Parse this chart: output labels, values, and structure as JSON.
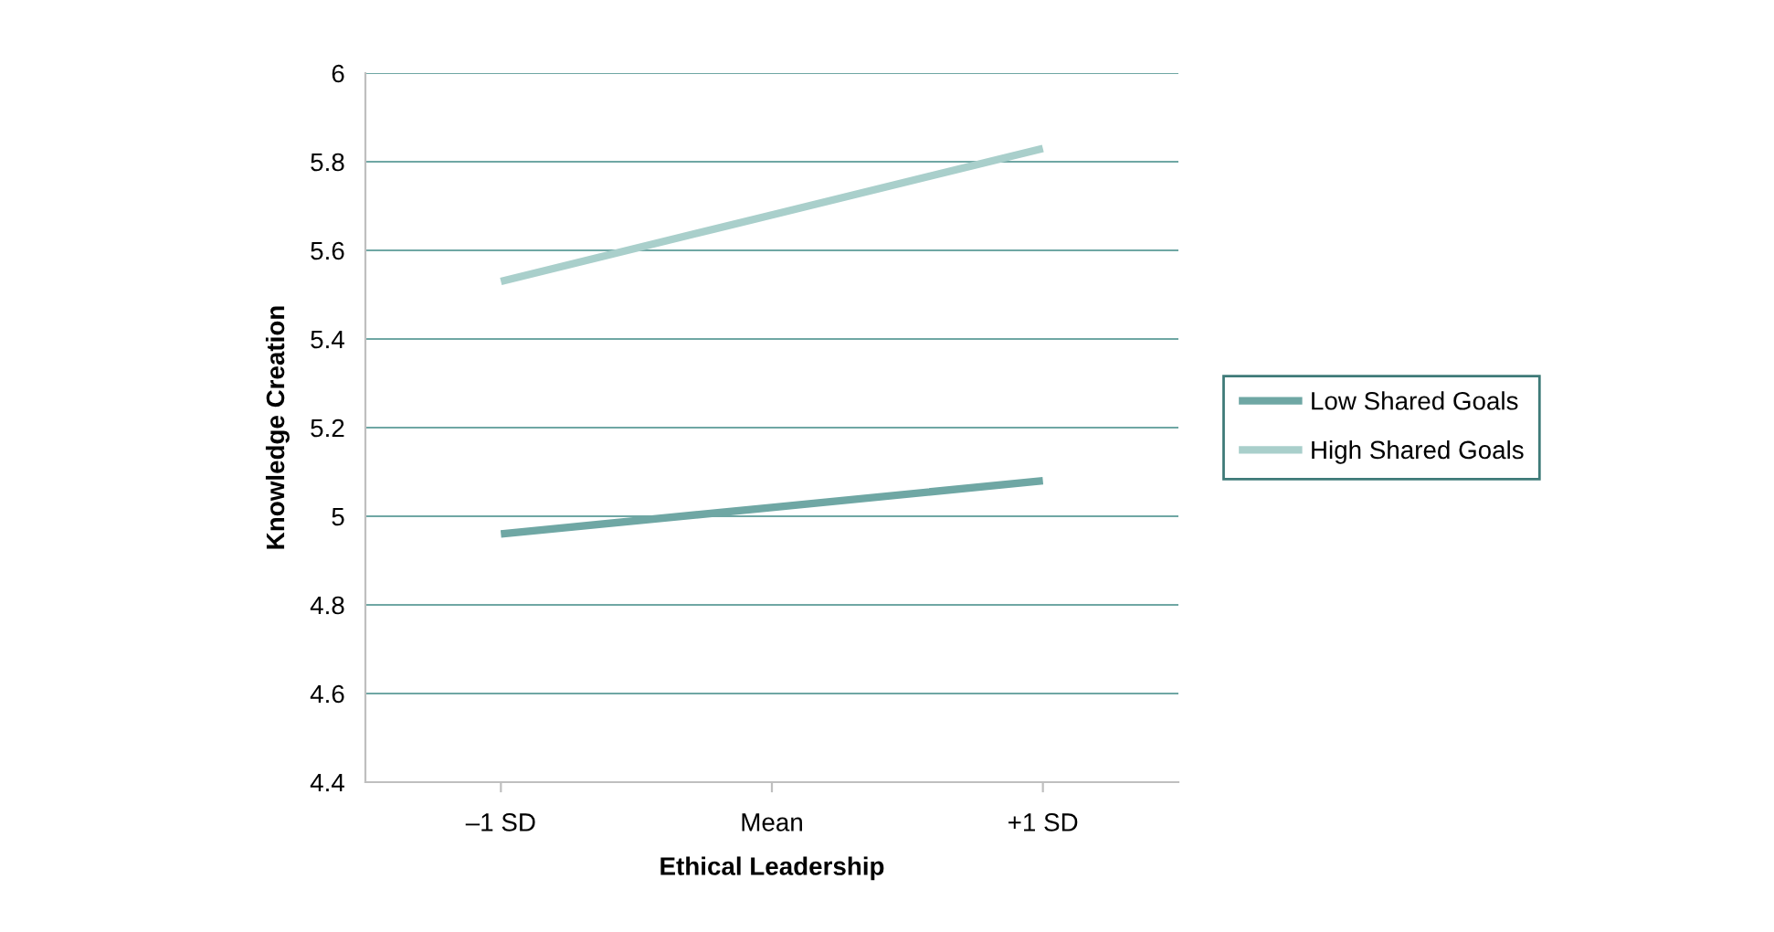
{
  "chart_data": {
    "type": "line",
    "xlabel": "Ethical Leadership",
    "ylabel": "Knowledge Creation",
    "categories": [
      "–1 SD",
      "Mean",
      "+1 SD"
    ],
    "series": [
      {
        "name": "Low Shared Goals",
        "color": "#6fa7a4",
        "values": [
          4.96,
          5.02,
          5.08
        ]
      },
      {
        "name": "High Shared Goals",
        "color": "#a9cfcb",
        "values": [
          5.53,
          5.68,
          5.83
        ]
      }
    ],
    "ylim": [
      4.4,
      6
    ],
    "yticks": [
      4.4,
      4.6,
      4.8,
      5,
      5.2,
      5.4,
      5.6,
      5.8,
      6
    ],
    "grid": "y",
    "legend": "right",
    "marker": "none",
    "line_style": "solid"
  }
}
